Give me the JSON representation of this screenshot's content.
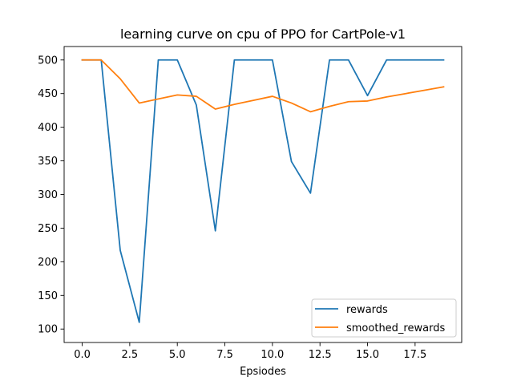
{
  "chart_data": {
    "type": "line",
    "title": "learning curve on cpu of PPO for CartPole-v1",
    "xlabel": "Epsiodes",
    "ylabel": "",
    "xlim": [
      -0.95,
      19.95
    ],
    "ylim": [
      80,
      520
    ],
    "xticks": [
      0.0,
      2.5,
      5.0,
      7.5,
      10.0,
      12.5,
      15.0,
      17.5
    ],
    "xtick_labels": [
      "0.0",
      "2.5",
      "5.0",
      "7.5",
      "10.0",
      "12.5",
      "15.0",
      "17.5"
    ],
    "yticks": [
      100,
      150,
      200,
      250,
      300,
      350,
      400,
      450,
      500
    ],
    "ytick_labels": [
      "100",
      "150",
      "200",
      "250",
      "300",
      "350",
      "400",
      "450",
      "500"
    ],
    "grid": false,
    "legend_position": "lower-right",
    "x": [
      0,
      1,
      2,
      3,
      4,
      5,
      6,
      7,
      8,
      9,
      10,
      11,
      12,
      13,
      14,
      15,
      16,
      17,
      18,
      19
    ],
    "series": [
      {
        "name": "rewards",
        "color": "#1f77b4",
        "values": [
          500,
          500,
          217,
          110,
          500,
          500,
          433,
          246,
          500,
          500,
          500,
          349,
          302,
          500,
          500,
          447,
          500,
          500,
          500,
          500
        ]
      },
      {
        "name": "smoothed_rewards",
        "color": "#ff7f0e",
        "values": [
          500,
          500,
          472,
          436,
          442,
          448,
          446,
          427,
          434,
          440,
          446,
          436,
          423,
          431,
          438,
          439,
          445,
          450,
          455,
          460
        ]
      }
    ]
  }
}
